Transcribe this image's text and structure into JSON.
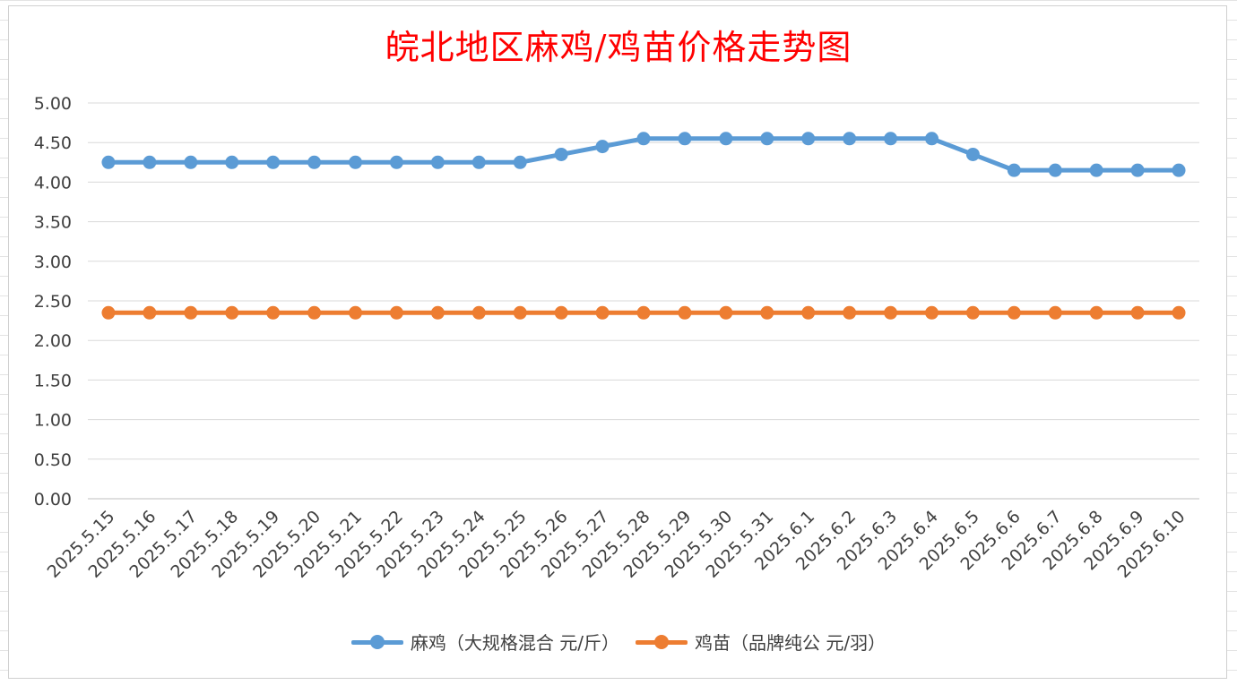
{
  "chart_data": {
    "type": "line",
    "title": "皖北地区麻鸡/鸡苗价格走势图",
    "categories": [
      "2025.5.15",
      "2025.5.16",
      "2025.5.17",
      "2025.5.18",
      "2025.5.19",
      "2025.5.20",
      "2025.5.21",
      "2025.5.22",
      "2025.5.23",
      "2025.5.24",
      "2025.5.25",
      "2025.5.26",
      "2025.5.27",
      "2025.5.28",
      "2025.5.29",
      "2025.5.30",
      "2025.5.31",
      "2025.6.1",
      "2025.6.2",
      "2025.6.3",
      "2025.6.4",
      "2025.6.5",
      "2025.6.6",
      "2025.6.7",
      "2025.6.8",
      "2025.6.9",
      "2025.6.10"
    ],
    "series": [
      {
        "name": "麻鸡（大规格混合 元/斤）",
        "color": "#5b9bd5",
        "values": [
          4.25,
          4.25,
          4.25,
          4.25,
          4.25,
          4.25,
          4.25,
          4.25,
          4.25,
          4.25,
          4.25,
          4.35,
          4.45,
          4.55,
          4.55,
          4.55,
          4.55,
          4.55,
          4.55,
          4.55,
          4.55,
          4.35,
          4.15,
          4.15,
          4.15,
          4.15,
          4.15
        ]
      },
      {
        "name": "鸡苗（品牌纯公 元/羽）",
        "color": "#ed7d31",
        "values": [
          2.35,
          2.35,
          2.35,
          2.35,
          2.35,
          2.35,
          2.35,
          2.35,
          2.35,
          2.35,
          2.35,
          2.35,
          2.35,
          2.35,
          2.35,
          2.35,
          2.35,
          2.35,
          2.35,
          2.35,
          2.35,
          2.35,
          2.35,
          2.35,
          2.35,
          2.35,
          2.35
        ]
      }
    ],
    "ylim": [
      0,
      5
    ],
    "yticks": [
      "0.00",
      "0.50",
      "1.00",
      "1.50",
      "2.00",
      "2.50",
      "3.00",
      "3.50",
      "4.00",
      "4.50",
      "5.00"
    ],
    "grid": true,
    "legend": "bottom",
    "title_color": "#ff0000"
  }
}
